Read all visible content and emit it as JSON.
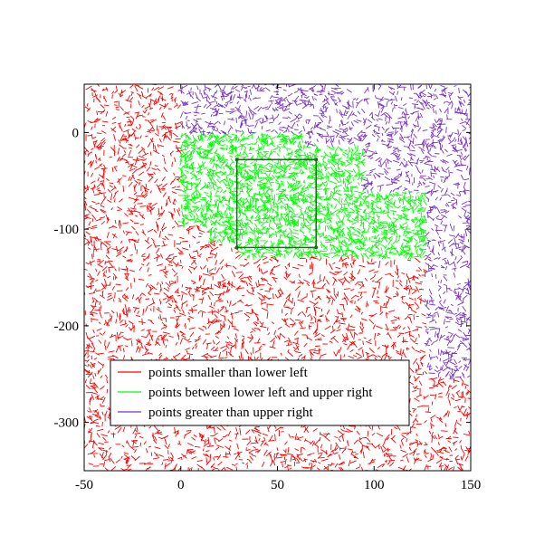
{
  "chart_data": {
    "type": "scatter",
    "title": "",
    "xlabel": "",
    "ylabel": "",
    "xlim": [
      -50,
      150
    ],
    "ylim": [
      -350,
      50
    ],
    "xticks": [
      -50,
      0,
      50,
      100,
      150
    ],
    "yticks": [
      0,
      -100,
      -200,
      -300
    ],
    "grid": false,
    "legend_position": "lower-left",
    "series": [
      {
        "name": "points smaller than lower left",
        "color": "#ff0000",
        "region_polygon": [
          [
            -50,
            50
          ],
          [
            0,
            50
          ],
          [
            0,
            -97
          ],
          [
            15,
            -97
          ],
          [
            15,
            -113
          ],
          [
            30,
            -113
          ],
          [
            30,
            -129
          ],
          [
            127,
            -129
          ],
          [
            127,
            -254
          ],
          [
            150,
            -254
          ],
          [
            150,
            -350
          ],
          [
            -50,
            -350
          ]
        ]
      },
      {
        "name": "points between lower left and upper right",
        "color": "#00ff00",
        "region_polygon": [
          [
            0,
            -1
          ],
          [
            63,
            -1
          ],
          [
            63,
            -14
          ],
          [
            95,
            -14
          ],
          [
            95,
            -62
          ],
          [
            127,
            -62
          ],
          [
            127,
            -129
          ],
          [
            30,
            -129
          ],
          [
            30,
            -113
          ],
          [
            15,
            -113
          ],
          [
            15,
            -97
          ],
          [
            0,
            -97
          ]
        ]
      },
      {
        "name": "points greater than upper right",
        "color": "#7a33cc",
        "region_polygon": [
          [
            0,
            50
          ],
          [
            150,
            50
          ],
          [
            150,
            -254
          ],
          [
            127,
            -254
          ],
          [
            127,
            -62
          ],
          [
            95,
            -62
          ],
          [
            95,
            -14
          ],
          [
            63,
            -14
          ],
          [
            63,
            -1
          ],
          [
            0,
            -1
          ]
        ]
      }
    ],
    "query_box": {
      "lower_left": [
        29,
        -119
      ],
      "upper_right": [
        70,
        -28
      ],
      "color": "#1a6b1a"
    }
  }
}
